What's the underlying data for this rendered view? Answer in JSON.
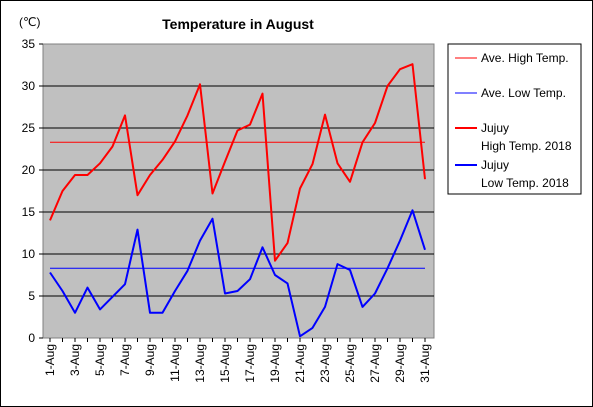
{
  "chart_data": {
    "type": "line",
    "title": "Temperature in August",
    "unit_label": "(℃)",
    "xlabel": "",
    "ylabel": "",
    "ylim": [
      0,
      35
    ],
    "y_ticks": [
      "0",
      "5",
      "10",
      "15",
      "20",
      "25",
      "30",
      "35"
    ],
    "categories": [
      "1-Aug",
      "2-Aug",
      "3-Aug",
      "4-Aug",
      "5-Aug",
      "6-Aug",
      "7-Aug",
      "8-Aug",
      "9-Aug",
      "10-Aug",
      "11-Aug",
      "12-Aug",
      "13-Aug",
      "14-Aug",
      "15-Aug",
      "16-Aug",
      "17-Aug",
      "18-Aug",
      "19-Aug",
      "20-Aug",
      "21-Aug",
      "22-Aug",
      "23-Aug",
      "24-Aug",
      "25-Aug",
      "26-Aug",
      "27-Aug",
      "28-Aug",
      "29-Aug",
      "30-Aug",
      "31-Aug"
    ],
    "x_tick_labels": [
      "1-Aug",
      "3-Aug",
      "5-Aug",
      "7-Aug",
      "9-Aug",
      "11-Aug",
      "13-Aug",
      "15-Aug",
      "17-Aug",
      "19-Aug",
      "21-Aug",
      "23-Aug",
      "25-Aug",
      "27-Aug",
      "29-Aug",
      "31-Aug"
    ],
    "grid": true,
    "legend_position": "right",
    "series": [
      {
        "name": "Ave. High Temp.",
        "color": "#ff0000",
        "width": 1,
        "values": [
          23.3,
          23.3,
          23.3,
          23.3,
          23.3,
          23.3,
          23.3,
          23.3,
          23.3,
          23.3,
          23.3,
          23.3,
          23.3,
          23.3,
          23.3,
          23.3,
          23.3,
          23.3,
          23.3,
          23.3,
          23.3,
          23.3,
          23.3,
          23.3,
          23.3,
          23.3,
          23.3,
          23.3,
          23.3,
          23.3,
          23.3
        ]
      },
      {
        "name": "Ave. Low Temp.",
        "color": "#0000ff",
        "width": 1,
        "values": [
          8.3,
          8.3,
          8.3,
          8.3,
          8.3,
          8.3,
          8.3,
          8.3,
          8.3,
          8.3,
          8.3,
          8.3,
          8.3,
          8.3,
          8.3,
          8.3,
          8.3,
          8.3,
          8.3,
          8.3,
          8.3,
          8.3,
          8.3,
          8.3,
          8.3,
          8.3,
          8.3,
          8.3,
          8.3,
          8.3,
          8.3
        ]
      },
      {
        "name_lines": [
          "Jujuy",
          "High Temp. 2018"
        ],
        "color": "#ff0000",
        "width": 2,
        "values": [
          14.0,
          17.5,
          19.4,
          19.4,
          20.8,
          22.8,
          26.5,
          17.0,
          19.4,
          21.2,
          23.4,
          26.5,
          30.2,
          17.2,
          21.0,
          24.7,
          25.4,
          29.1,
          9.2,
          11.3,
          17.8,
          20.7,
          26.6,
          20.8,
          18.6,
          23.3,
          25.6,
          30.0,
          32.0,
          32.6,
          18.9
        ]
      },
      {
        "name_lines": [
          "Jujuy",
          "Low Temp. 2018"
        ],
        "color": "#0000ff",
        "width": 2,
        "values": [
          7.8,
          5.6,
          3.0,
          6.0,
          3.4,
          4.9,
          6.4,
          12.9,
          3.0,
          3.0,
          5.6,
          8.0,
          11.6,
          14.2,
          5.3,
          5.6,
          7.0,
          10.8,
          7.5,
          6.5,
          0.2,
          1.2,
          3.7,
          8.8,
          8.1,
          3.7,
          5.3,
          8.3,
          11.6,
          15.2,
          10.5
        ]
      }
    ]
  }
}
